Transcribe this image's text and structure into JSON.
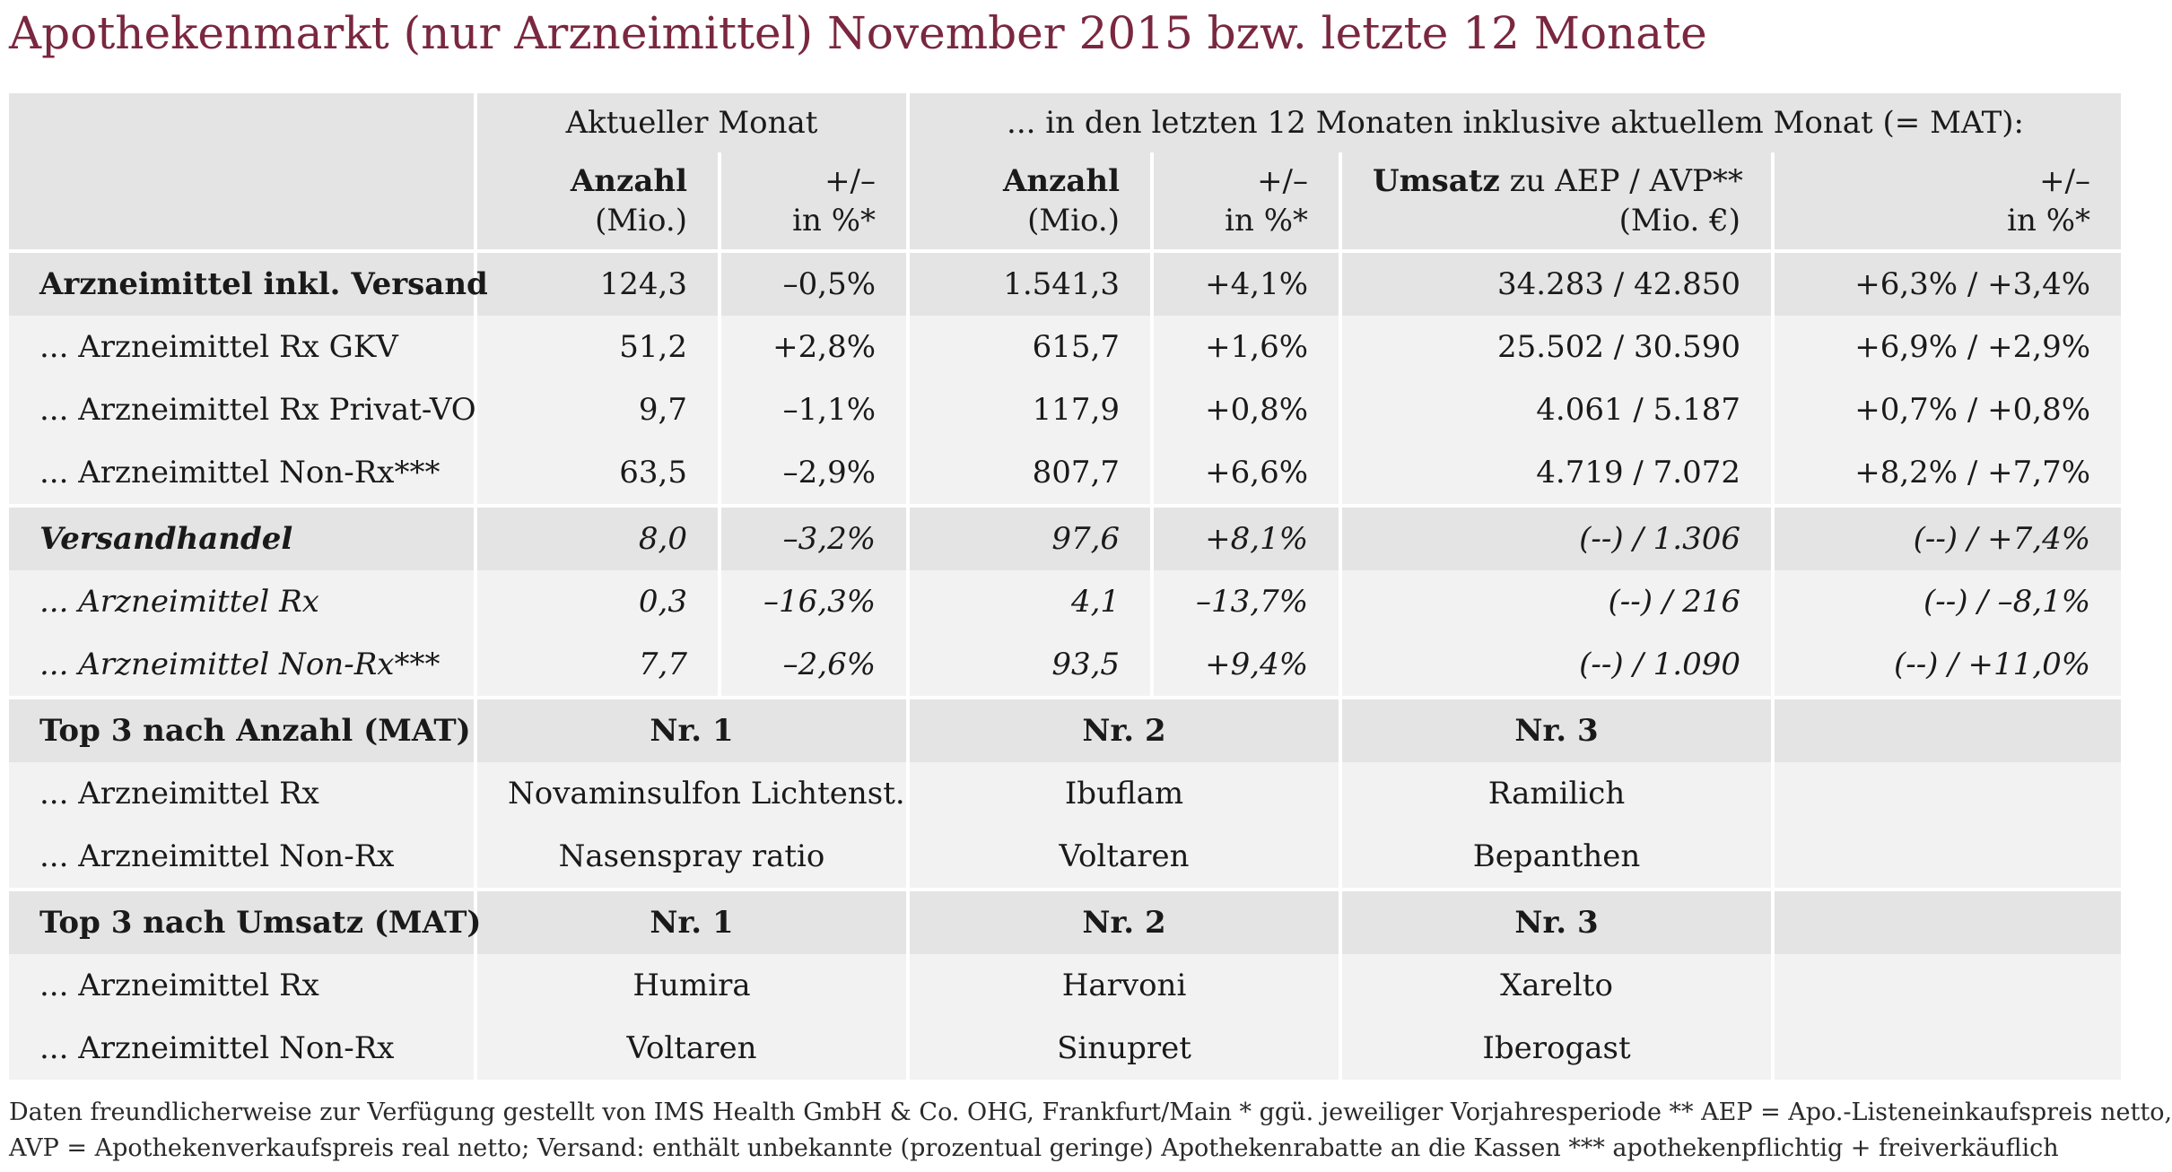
{
  "title": "Apothekenmarkt (nur Arzneimittel) November 2015 bzw. letzte 12 Monate",
  "header": {
    "group_current": "Aktueller Monat",
    "group_mat": "... in den letzten 12 Monaten inklusive aktuellem Monat (= MAT):",
    "col_anzahl_bold": "Anzahl",
    "col_anzahl_unit": "(Mio.)",
    "col_change_top": "+/–",
    "col_change_unit": "in %*",
    "col_umsatz_bold": "Umsatz",
    "col_umsatz_rest": " zu AEP / AVP**",
    "col_umsatz_unit": "(Mio. €)"
  },
  "rows": [
    {
      "label": "Arzneimittel inkl. Versand",
      "cur_anzahl": "124,3",
      "cur_change": "–0,5%",
      "mat_anzahl": "1.541,3",
      "mat_change": "+4,1%",
      "umsatz": "34.283 / 42.850",
      "umsatz_change": "+6,3% / +3,4%"
    },
    {
      "label": "... Arzneimittel Rx GKV",
      "cur_anzahl": "51,2",
      "cur_change": "+2,8%",
      "mat_anzahl": "615,7",
      "mat_change": "+1,6%",
      "umsatz": "25.502 / 30.590",
      "umsatz_change": "+6,9% / +2,9%"
    },
    {
      "label": "... Arzneimittel Rx Privat-VO",
      "cur_anzahl": "9,7",
      "cur_change": "–1,1%",
      "mat_anzahl": "117,9",
      "mat_change": "+0,8%",
      "umsatz": "4.061 / 5.187",
      "umsatz_change": "+0,7% / +0,8%"
    },
    {
      "label": "... Arzneimittel Non-Rx***",
      "cur_anzahl": "63,5",
      "cur_change": "–2,9%",
      "mat_anzahl": "807,7",
      "mat_change": "+6,6%",
      "umsatz": "4.719 / 7.072",
      "umsatz_change": "+8,2% / +7,7%"
    },
    {
      "label": "Versandhandel",
      "cur_anzahl": "8,0",
      "cur_change": "–3,2%",
      "mat_anzahl": "97,6",
      "mat_change": "+8,1%",
      "umsatz": "(--) / 1.306",
      "umsatz_change": "(--) / +7,4%"
    },
    {
      "label": "... Arzneimittel Rx",
      "cur_anzahl": "0,3",
      "cur_change": "–16,3%",
      "mat_anzahl": "4,1",
      "mat_change": "–13,7%",
      "umsatz": "(--) / 216",
      "umsatz_change": "(--) / –8,1%"
    },
    {
      "label": "... Arzneimittel Non-Rx***",
      "cur_anzahl": "7,7",
      "cur_change": "–2,6%",
      "mat_anzahl": "93,5",
      "mat_change": "+9,4%",
      "umsatz": "(--) / 1.090",
      "umsatz_change": "(--) / +11,0%"
    }
  ],
  "top_anzahl": {
    "heading": "Top 3 nach Anzahl (MAT)",
    "nr1": "Nr. 1",
    "nr2": "Nr. 2",
    "nr3": "Nr. 3",
    "rx_label": "... Arzneimittel Rx",
    "rx": [
      "Novaminsulfon Lichtenst.",
      "Ibuflam",
      "Ramilich"
    ],
    "nonrx_label": "... Arzneimittel Non-Rx",
    "nonrx": [
      "Nasenspray ratio",
      "Voltaren",
      "Bepanthen"
    ]
  },
  "top_umsatz": {
    "heading": "Top 3 nach Umsatz (MAT)",
    "nr1": "Nr. 1",
    "nr2": "Nr. 2",
    "nr3": "Nr. 3",
    "rx_label": "... Arzneimittel Rx",
    "rx": [
      "Humira",
      "Harvoni",
      "Xarelto"
    ],
    "nonrx_label": "... Arzneimittel Non-Rx",
    "nonrx": [
      "Voltaren",
      "Sinupret",
      "Iberogast"
    ]
  },
  "footnote": {
    "line1": "Daten freundlicherweise zur Verfügung gestellt von IMS Health GmbH & Co. OHG, Frankfurt/Main   * ggü. jeweiliger Vorjahresperiode   ** AEP = Apo.-Listeneinkaufspreis netto,",
    "line2": "AVP = Apothekenverkaufspreis real netto; Versand: enthält unbekannte (prozentual geringe) Apothekenrabatte an die Kassen   *** apothekenpflichtig + freiverkäuflich"
  }
}
